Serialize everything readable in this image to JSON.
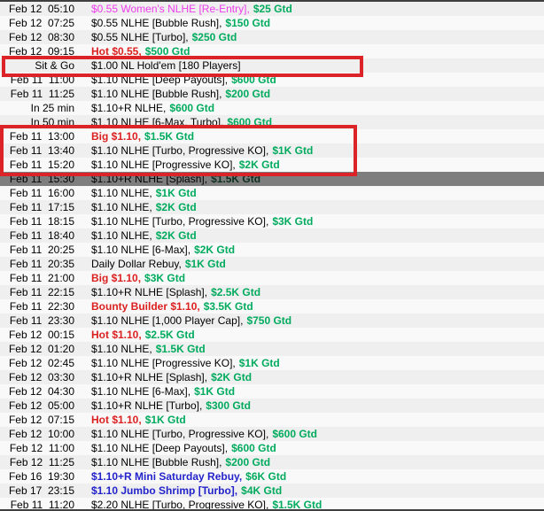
{
  "colors": {
    "green": "#00ab5e",
    "red": "#dc1f1f",
    "blue": "#2323cb",
    "magenta": "#ee3cee",
    "box-red": "#dc2428",
    "selected-bg": "#7e7e7e",
    "stripe-a": "#efefef",
    "stripe-b": "#f9f9f9",
    "border-dark": "#3f3f3f"
  },
  "annotations": {
    "boxes": [
      {
        "label": "highlight-sit-and-go-row"
      },
      {
        "label": "highlight-big-110-rows"
      }
    ]
  },
  "list": {
    "rows": [
      {
        "when": "Feb 12  05:10",
        "name": "$0.55 Women's NLHE [Re-Entry],",
        "style": "magenta",
        "gtd": "$25 Gtd"
      },
      {
        "when": "Feb 12  07:25",
        "name": "$0.55 NLHE [Bubble Rush],",
        "style": "normal",
        "gtd": "$150 Gtd"
      },
      {
        "when": "Feb 12  08:30",
        "name": "$0.55 NLHE [Turbo],",
        "style": "normal",
        "gtd": "$250 Gtd"
      },
      {
        "when": "Feb 12  09:15",
        "name": "Hot $0.55,",
        "style": "red",
        "gtd": "$500 Gtd"
      },
      {
        "when": "Sit & Go",
        "name": "$1.00 NL Hold'em [180 Players]",
        "style": "normal",
        "gtd": ""
      },
      {
        "when": "Feb 11  11:00",
        "name": "$1.10 NLHE [Deep Payouts],",
        "style": "normal",
        "gtd": "$600 Gtd"
      },
      {
        "when": "Feb 11  11:25",
        "name": "$1.10 NLHE [Bubble Rush],",
        "style": "normal",
        "gtd": "$200 Gtd"
      },
      {
        "when": "In 25 min",
        "name": "$1.10+R NLHE,",
        "style": "normal",
        "gtd": "$600 Gtd"
      },
      {
        "when": "In 50 min",
        "name": "$1.10 NLHE [6-Max, Turbo],",
        "style": "normal",
        "gtd": "$600 Gtd"
      },
      {
        "when": "Feb 11  13:00",
        "name": "Big $1.10,",
        "style": "red",
        "gtd": "$1.5K Gtd"
      },
      {
        "when": "Feb 11  13:40",
        "name": "$1.10 NLHE [Turbo, Progressive KO],",
        "style": "normal",
        "gtd": "$1K Gtd"
      },
      {
        "when": "Feb 11  15:20",
        "name": "$1.10 NLHE [Progressive KO],",
        "style": "normal",
        "gtd": "$2K Gtd"
      },
      {
        "when": "Feb 11  15:30",
        "name": "$1.10+R NLHE [Splash],",
        "style": "normal",
        "gtd": "$1.5K Gtd",
        "selected": true
      },
      {
        "when": "Feb 11  16:00",
        "name": "$1.10 NLHE,",
        "style": "normal",
        "gtd": "$1K Gtd"
      },
      {
        "when": "Feb 11  17:15",
        "name": "$1.10 NLHE,",
        "style": "normal",
        "gtd": "$2K Gtd"
      },
      {
        "when": "Feb 11  18:15",
        "name": "$1.10 NLHE [Turbo, Progressive KO],",
        "style": "normal",
        "gtd": "$3K Gtd"
      },
      {
        "when": "Feb 11  18:40",
        "name": "$1.10 NLHE,",
        "style": "normal",
        "gtd": "$2K Gtd"
      },
      {
        "when": "Feb 11  20:25",
        "name": "$1.10 NLHE [6-Max],",
        "style": "normal",
        "gtd": "$2K Gtd"
      },
      {
        "when": "Feb 11  20:35",
        "name": "Daily Dollar Rebuy,",
        "style": "normal",
        "gtd": "$1K Gtd"
      },
      {
        "when": "Feb 11  21:00",
        "name": "Big $1.10,",
        "style": "red",
        "gtd": "$3K Gtd"
      },
      {
        "when": "Feb 11  22:15",
        "name": "$1.10+R NLHE [Splash],",
        "style": "normal",
        "gtd": "$2.5K Gtd"
      },
      {
        "when": "Feb 11  22:30",
        "name": "Bounty Builder $1.10,",
        "style": "red",
        "gtd": "$3.5K Gtd"
      },
      {
        "when": "Feb 11  23:30",
        "name": "$1.10 NLHE [1,000 Player Cap],",
        "style": "normal",
        "gtd": "$750 Gtd"
      },
      {
        "when": "Feb 12  00:15",
        "name": "Hot $1.10,",
        "style": "red",
        "gtd": "$2.5K Gtd"
      },
      {
        "when": "Feb 12  01:20",
        "name": "$1.10 NLHE,",
        "style": "normal",
        "gtd": "$1.5K Gtd"
      },
      {
        "when": "Feb 12  02:45",
        "name": "$1.10 NLHE [Progressive KO],",
        "style": "normal",
        "gtd": "$1K Gtd"
      },
      {
        "when": "Feb 12  03:30",
        "name": "$1.10+R NLHE [Splash],",
        "style": "normal",
        "gtd": "$2K Gtd"
      },
      {
        "when": "Feb 12  04:30",
        "name": "$1.10 NLHE [6-Max],",
        "style": "normal",
        "gtd": "$1K Gtd"
      },
      {
        "when": "Feb 12  05:00",
        "name": "$1.10+R NLHE [Turbo],",
        "style": "normal",
        "gtd": "$300 Gtd"
      },
      {
        "when": "Feb 12  07:15",
        "name": "Hot $1.10,",
        "style": "red",
        "gtd": "$1K Gtd"
      },
      {
        "when": "Feb 12  10:00",
        "name": "$1.10 NLHE [Turbo, Progressive KO],",
        "style": "normal",
        "gtd": "$600 Gtd"
      },
      {
        "when": "Feb 12  11:00",
        "name": "$1.10 NLHE [Deep Payouts],",
        "style": "normal",
        "gtd": "$600 Gtd"
      },
      {
        "when": "Feb 12  11:25",
        "name": "$1.10 NLHE [Bubble Rush],",
        "style": "normal",
        "gtd": "$200 Gtd"
      },
      {
        "when": "Feb 16  19:30",
        "name": "$1.10+R Mini Saturday Rebuy,",
        "style": "blue",
        "gtd": "$6K Gtd"
      },
      {
        "when": "Feb 17  23:15",
        "name": "$1.10 Jumbo Shrimp [Turbo],",
        "style": "blue",
        "gtd": "$4K Gtd"
      },
      {
        "when": "Feb 11  11:20",
        "name": "$2.20 NLHE [Turbo, Progressive KO],",
        "style": "normal",
        "gtd": "$1.5K Gtd"
      }
    ]
  }
}
